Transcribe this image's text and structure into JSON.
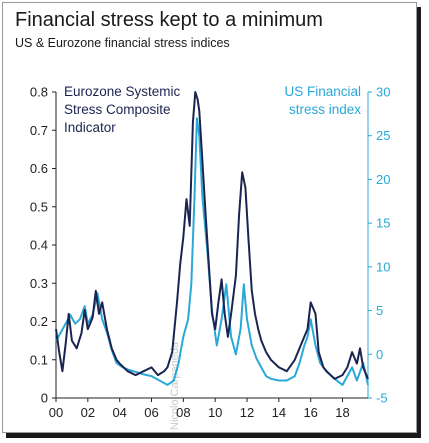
{
  "title": "Financial stress kept to a minimum",
  "subtitle": "US & Eurozone financial stress indices",
  "watermark": "Nicolo Carpaneda",
  "colors": {
    "eurozone": "#1b2450",
    "us": "#2aa8d8",
    "axis": "#222222"
  },
  "chart_data": {
    "type": "line",
    "x_ticks": [
      "00",
      "02",
      "04",
      "06",
      "08",
      "10",
      "12",
      "14",
      "16",
      "18"
    ],
    "x_range": [
      2000,
      2019.6
    ],
    "left_axis": {
      "ticks": [
        "0",
        "0.1",
        "0.2",
        "0.3",
        "0.4",
        "0.5",
        "0.6",
        "0.7",
        "0.8"
      ],
      "ylim": [
        0,
        0.8
      ]
    },
    "right_axis": {
      "ticks": [
        "-5",
        "0",
        "5",
        "10",
        "15",
        "20",
        "25",
        "30"
      ],
      "ylim": [
        -5,
        30
      ]
    },
    "grid": false,
    "series": [
      {
        "name": "Eurozone Systemic Stress Composite Indicator",
        "axis": "left",
        "label_lines": [
          "Eurozone Systemic",
          "Stress Composite",
          "Indicator"
        ],
        "x": [
          2000,
          2000.2,
          2000.4,
          2000.6,
          2000.8,
          2001,
          2001.3,
          2001.6,
          2001.8,
          2002,
          2002.3,
          2002.5,
          2002.7,
          2002.9,
          2003.2,
          2003.5,
          2003.8,
          2004,
          2004.5,
          2005,
          2005.5,
          2006,
          2006.4,
          2006.8,
          2007,
          2007.3,
          2007.6,
          2007.8,
          2008,
          2008.2,
          2008.4,
          2008.6,
          2008.75,
          2008.9,
          2009,
          2009.2,
          2009.4,
          2009.6,
          2009.8,
          2010,
          2010.2,
          2010.4,
          2010.6,
          2010.8,
          2011,
          2011.3,
          2011.5,
          2011.7,
          2011.9,
          2012.1,
          2012.3,
          2012.5,
          2012.7,
          2012.9,
          2013.2,
          2013.5,
          2014,
          2014.5,
          2015,
          2015.4,
          2015.8,
          2016,
          2016.3,
          2016.5,
          2016.8,
          2017,
          2017.5,
          2018,
          2018.3,
          2018.6,
          2018.9,
          2019.1,
          2019.3,
          2019.6
        ],
        "values": [
          0.18,
          0.12,
          0.07,
          0.14,
          0.22,
          0.15,
          0.13,
          0.17,
          0.23,
          0.18,
          0.21,
          0.28,
          0.22,
          0.25,
          0.18,
          0.13,
          0.1,
          0.09,
          0.07,
          0.06,
          0.07,
          0.08,
          0.06,
          0.07,
          0.08,
          0.12,
          0.25,
          0.35,
          0.42,
          0.52,
          0.45,
          0.72,
          0.8,
          0.78,
          0.75,
          0.62,
          0.48,
          0.35,
          0.22,
          0.18,
          0.25,
          0.31,
          0.22,
          0.16,
          0.22,
          0.32,
          0.48,
          0.59,
          0.55,
          0.41,
          0.28,
          0.22,
          0.18,
          0.15,
          0.12,
          0.1,
          0.08,
          0.07,
          0.1,
          0.14,
          0.18,
          0.25,
          0.22,
          0.12,
          0.08,
          0.07,
          0.05,
          0.06,
          0.08,
          0.12,
          0.09,
          0.13,
          0.08,
          0.05
        ]
      },
      {
        "name": "US Financial stress index",
        "axis": "right",
        "label_lines": [
          "US Financial",
          "stress index"
        ],
        "x": [
          2000,
          2000.3,
          2000.6,
          2000.9,
          2001.2,
          2001.5,
          2001.8,
          2002,
          2002.3,
          2002.6,
          2002.9,
          2003.2,
          2003.5,
          2003.8,
          2004.2,
          2004.6,
          2005,
          2005.5,
          2006,
          2006.5,
          2007,
          2007.4,
          2007.7,
          2008,
          2008.3,
          2008.5,
          2008.7,
          2008.85,
          2009,
          2009.2,
          2009.5,
          2009.8,
          2010.1,
          2010.4,
          2010.7,
          2011,
          2011.3,
          2011.6,
          2011.8,
          2012,
          2012.3,
          2012.6,
          2012.9,
          2013.2,
          2013.5,
          2014,
          2014.5,
          2015,
          2015.3,
          2015.6,
          2015.8,
          2016,
          2016.3,
          2016.6,
          2017,
          2017.5,
          2018,
          2018.3,
          2018.6,
          2018.9,
          2019.1,
          2019.3,
          2019.6
        ],
        "values": [
          1.5,
          2.5,
          3.5,
          4.5,
          3.5,
          4,
          5.5,
          3.5,
          4.5,
          7,
          4,
          2.5,
          0.5,
          -1,
          -1.5,
          -1.8,
          -2,
          -2.3,
          -2.5,
          -3,
          -3.5,
          -3,
          -1,
          2,
          4,
          8,
          18,
          27,
          25,
          18,
          12,
          5,
          1,
          4,
          8,
          2,
          0,
          3,
          8,
          4,
          1,
          -0.5,
          -1.5,
          -2.5,
          -2.8,
          -3,
          -3,
          -2.5,
          -1,
          1,
          2,
          4,
          1,
          -1,
          -2,
          -2.8,
          -3.5,
          -2.5,
          -1.5,
          -3,
          -2,
          -1,
          -3.5
        ]
      }
    ]
  }
}
